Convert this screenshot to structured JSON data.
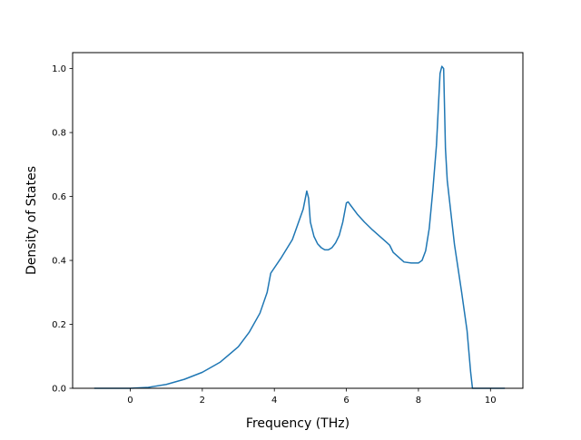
{
  "chart_data": {
    "type": "line",
    "title": "",
    "xlabel": "Frequency (THz)",
    "ylabel": "Density of States",
    "xlim": [
      -1.6,
      10.9
    ],
    "ylim": [
      0.0,
      1.05
    ],
    "xticks": [
      0,
      2,
      4,
      6,
      8,
      10
    ],
    "yticks": [
      0.0,
      0.2,
      0.4,
      0.6,
      0.8,
      1.0
    ],
    "xtick_labels": [
      "0",
      "2",
      "4",
      "6",
      "8",
      "10"
    ],
    "ytick_labels": [
      "0.0",
      "0.2",
      "0.4",
      "0.6",
      "0.8",
      "1.0"
    ],
    "grid": false,
    "series": [
      {
        "color": "#1f77b4",
        "x": [
          -1.0,
          -0.5,
          0.0,
          0.5,
          1.0,
          1.5,
          2.0,
          2.5,
          3.0,
          3.3,
          3.6,
          3.8,
          3.9,
          4.2,
          4.5,
          4.8,
          4.9,
          4.95,
          5.0,
          5.1,
          5.2,
          5.3,
          5.4,
          5.5,
          5.6,
          5.7,
          5.8,
          5.9,
          6.0,
          6.05,
          6.1,
          6.3,
          6.5,
          6.7,
          6.9,
          7.1,
          7.2,
          7.3,
          7.5,
          7.6,
          7.8,
          8.0,
          8.1,
          8.2,
          8.3,
          8.4,
          8.5,
          8.6,
          8.65,
          8.7,
          8.75,
          8.8,
          9.0,
          9.2,
          9.35,
          9.45,
          9.5,
          9.8,
          10.4
        ],
        "y": [
          0.0,
          0.0,
          0.0,
          0.003,
          0.012,
          0.028,
          0.05,
          0.082,
          0.13,
          0.175,
          0.235,
          0.3,
          0.36,
          0.41,
          0.465,
          0.56,
          0.617,
          0.595,
          0.52,
          0.475,
          0.452,
          0.44,
          0.433,
          0.433,
          0.44,
          0.455,
          0.478,
          0.52,
          0.58,
          0.583,
          0.575,
          0.545,
          0.52,
          0.498,
          0.478,
          0.458,
          0.448,
          0.425,
          0.405,
          0.395,
          0.392,
          0.392,
          0.4,
          0.43,
          0.5,
          0.62,
          0.76,
          0.985,
          1.007,
          1.0,
          0.75,
          0.65,
          0.45,
          0.3,
          0.18,
          0.05,
          0.0,
          0.0,
          0.0
        ]
      }
    ]
  }
}
